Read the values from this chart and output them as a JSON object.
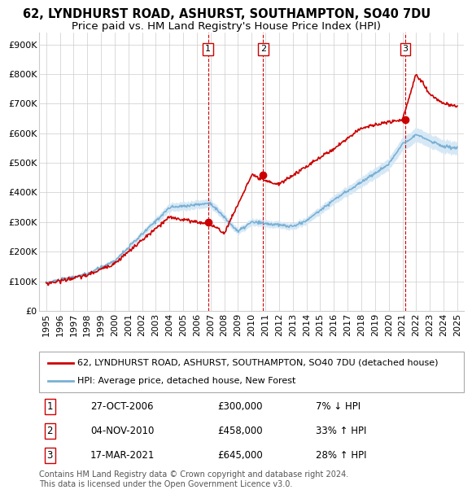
{
  "title": "62, LYNDHURST ROAD, ASHURST, SOUTHAMPTON, SO40 7DU",
  "subtitle": "Price paid vs. HM Land Registry's House Price Index (HPI)",
  "ylabel_ticks": [
    "£0",
    "£100K",
    "£200K",
    "£300K",
    "£400K",
    "£500K",
    "£600K",
    "£700K",
    "£800K",
    "£900K"
  ],
  "ytick_vals": [
    0,
    100000,
    200000,
    300000,
    400000,
    500000,
    600000,
    700000,
    800000,
    900000
  ],
  "ylim": [
    0,
    940000
  ],
  "xlim_start": 1994.5,
  "xlim_end": 2025.5,
  "xticks": [
    1995,
    1996,
    1997,
    1998,
    1999,
    2000,
    2001,
    2002,
    2003,
    2004,
    2005,
    2006,
    2007,
    2008,
    2009,
    2010,
    2011,
    2012,
    2013,
    2014,
    2015,
    2016,
    2017,
    2018,
    2019,
    2020,
    2021,
    2022,
    2023,
    2024,
    2025
  ],
  "sale_dates": [
    2006.82,
    2010.84,
    2021.21
  ],
  "sale_prices": [
    300000,
    458000,
    645000
  ],
  "sale_labels": [
    "1",
    "2",
    "3"
  ],
  "red_line_color": "#cc0000",
  "blue_line_color": "#7ab0d4",
  "blue_fill_color": "#d6e8f5",
  "vline_color": "#cc0000",
  "background_color": "#ffffff",
  "grid_color": "#cccccc",
  "legend_label_red": "62, LYNDHURST ROAD, ASHURST, SOUTHAMPTON, SO40 7DU (detached house)",
  "legend_label_blue": "HPI: Average price, detached house, New Forest",
  "table_rows": [
    [
      "1",
      "27-OCT-2006",
      "£300,000",
      "7% ↓ HPI"
    ],
    [
      "2",
      "04-NOV-2010",
      "£458,000",
      "33% ↑ HPI"
    ],
    [
      "3",
      "17-MAR-2021",
      "£645,000",
      "28% ↑ HPI"
    ]
  ],
  "footnote": "Contains HM Land Registry data © Crown copyright and database right 2024.\nThis data is licensed under the Open Government Licence v3.0.",
  "title_fontsize": 10.5,
  "subtitle_fontsize": 9.5,
  "tick_fontsize": 8,
  "legend_fontsize": 8,
  "table_fontsize": 8.5,
  "footnote_fontsize": 7
}
